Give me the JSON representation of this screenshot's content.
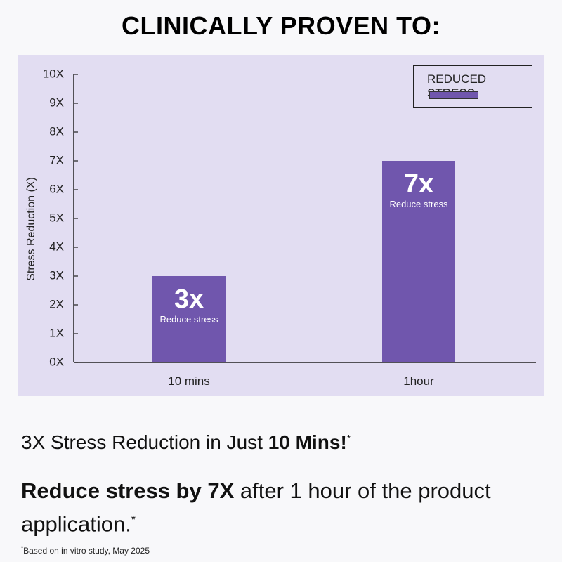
{
  "headline": "CLINICALLY PROVEN TO:",
  "legend": {
    "label": "REDUCED STRESS"
  },
  "claim1": {
    "text": "3X Stress Reduction in Just ",
    "bold": "10 Mins!",
    "mark": "*"
  },
  "claim2": {
    "bold": "Reduce stress by 7X",
    "text": " after 1 hour of the product application.",
    "mark": "*"
  },
  "footnote": {
    "mark": "*",
    "text": "Based on in vitro study, May 2025"
  },
  "colors": {
    "bar": "#7056ad",
    "panel": "#e2ddf2",
    "axis": "#222222"
  },
  "chart_data": {
    "type": "bar",
    "categories": [
      "10 mins",
      "1hour"
    ],
    "series": [
      {
        "name": "REDUCED STRESS",
        "values": [
          3,
          7
        ]
      }
    ],
    "bar_labels": [
      {
        "big": "3x",
        "small": "Reduce stress"
      },
      {
        "big": "7x",
        "small": "Reduce stress"
      }
    ],
    "ylabel": "Stress Reduction (X)",
    "xlabel": "",
    "ylim": [
      0,
      10
    ],
    "yticks": [
      "0X",
      "1X",
      "2X",
      "3X",
      "4X",
      "5X",
      "6X",
      "7X",
      "8X",
      "9X",
      "10X"
    ],
    "legend_position": "top-right",
    "grid": false
  }
}
